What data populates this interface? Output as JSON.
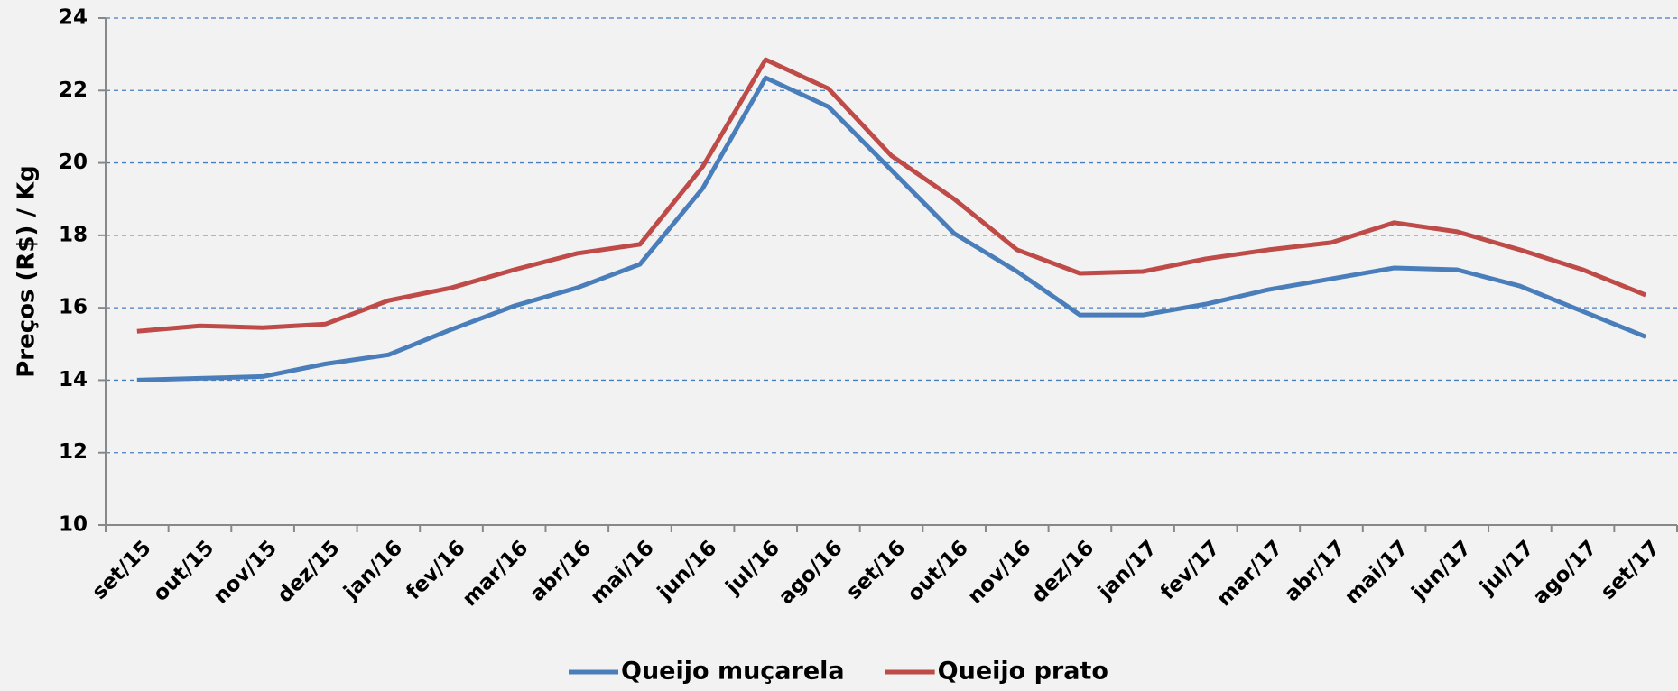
{
  "chart_data": {
    "type": "line",
    "y_label": "Preços (R$) / Kg",
    "categories": [
      "set/15",
      "out/15",
      "nov/15",
      "dez/15",
      "jan/16",
      "fev/16",
      "mar/16",
      "abr/16",
      "mai/16",
      "jun/16",
      "jul/16",
      "ago/16",
      "set/16",
      "out/16",
      "nov/16",
      "dez/16",
      "jan/17",
      "fev/17",
      "mar/17",
      "abr/17",
      "mai/17",
      "jun/17",
      "jul/17",
      "ago/17",
      "set/17"
    ],
    "series": [
      {
        "name": "Queijo muçarela",
        "color": "#4a7ebb",
        "values": [
          14.0,
          14.05,
          14.1,
          14.45,
          14.7,
          15.4,
          16.05,
          16.55,
          17.2,
          19.3,
          22.35,
          21.55,
          19.8,
          18.05,
          17.0,
          15.8,
          15.8,
          16.1,
          16.5,
          16.8,
          17.1,
          17.05,
          16.6,
          15.9,
          15.2
        ]
      },
      {
        "name": "Queijo prato",
        "color": "#be4b48",
        "values": [
          15.35,
          15.5,
          15.45,
          15.55,
          16.2,
          16.55,
          17.05,
          17.5,
          17.75,
          19.9,
          22.85,
          22.05,
          20.2,
          19.0,
          17.6,
          16.95,
          17.0,
          17.35,
          17.6,
          17.8,
          18.35,
          18.1,
          17.6,
          17.05,
          16.35
        ]
      }
    ],
    "ylim": [
      10,
      24
    ],
    "yticks": [
      10,
      12,
      14,
      16,
      18,
      20,
      22,
      24
    ],
    "grid": true,
    "legend": "bottom"
  }
}
